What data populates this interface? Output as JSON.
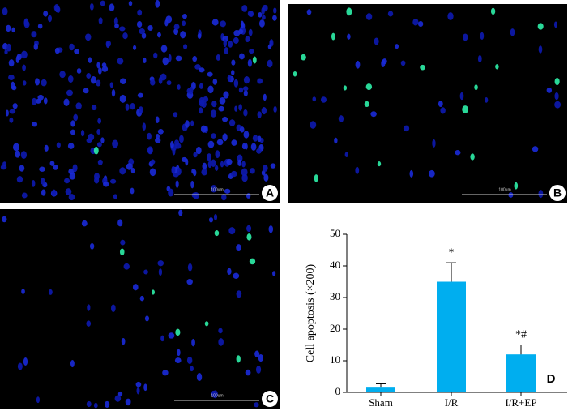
{
  "panels": [
    {
      "label": "A",
      "scale_bar": "100um"
    },
    {
      "label": "B",
      "scale_bar": "100um"
    },
    {
      "label": "C",
      "scale_bar": "100um"
    }
  ],
  "chart_data": {
    "type": "bar",
    "panel_label": "D",
    "ylabel": "Cell apoptosis (×200)",
    "categories": [
      "Sham",
      "I/R",
      "I/R+EP"
    ],
    "values": [
      1.5,
      35,
      12
    ],
    "errors": [
      1.2,
      6,
      3
    ],
    "annotations": [
      null,
      "*",
      "*#"
    ],
    "color": "#00aeef",
    "ylim": [
      0,
      50
    ],
    "yticks": [
      0,
      10,
      20,
      30,
      40,
      50
    ]
  }
}
